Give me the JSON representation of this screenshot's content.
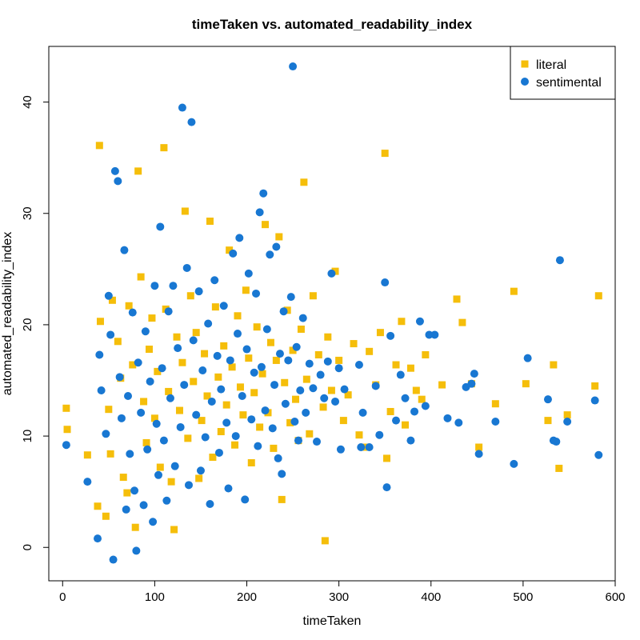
{
  "chart_data": {
    "type": "scatter",
    "title": "timeTaken vs. automated_readability_index",
    "xlabel": "timeTaken",
    "ylabel": "automated_readability_index",
    "xlim": [
      -15,
      600
    ],
    "ylim": [
      -3,
      45
    ],
    "xticks": [
      0,
      100,
      200,
      300,
      400,
      500,
      600
    ],
    "yticks": [
      0,
      10,
      20,
      30,
      40
    ],
    "grid": false,
    "legend_position": "top-right",
    "series": [
      {
        "name": "literal",
        "color": "#F5BE0A",
        "marker": "square",
        "points": [
          [
            4,
            12.5
          ],
          [
            5,
            10.6
          ],
          [
            27,
            8.3
          ],
          [
            38,
            3.7
          ],
          [
            40,
            36.1
          ],
          [
            41,
            20.3
          ],
          [
            47,
            2.8
          ],
          [
            50,
            12.4
          ],
          [
            52,
            8.4
          ],
          [
            54,
            22.2
          ],
          [
            60,
            18.5
          ],
          [
            63,
            15.2
          ],
          [
            66,
            6.3
          ],
          [
            70,
            4.9
          ],
          [
            72,
            21.7
          ],
          [
            76,
            16.4
          ],
          [
            79,
            1.8
          ],
          [
            82,
            33.8
          ],
          [
            85,
            24.3
          ],
          [
            88,
            13.1
          ],
          [
            91,
            9.4
          ],
          [
            94,
            17.8
          ],
          [
            97,
            20.6
          ],
          [
            100,
            11.6
          ],
          [
            103,
            15.8
          ],
          [
            106,
            7.2
          ],
          [
            110,
            35.9
          ],
          [
            112,
            21.4
          ],
          [
            115,
            14.0
          ],
          [
            118,
            5.9
          ],
          [
            121,
            1.6
          ],
          [
            124,
            18.9
          ],
          [
            127,
            12.3
          ],
          [
            130,
            16.6
          ],
          [
            133,
            30.2
          ],
          [
            136,
            9.8
          ],
          [
            139,
            22.6
          ],
          [
            142,
            14.9
          ],
          [
            145,
            19.3
          ],
          [
            148,
            6.2
          ],
          [
            151,
            11.4
          ],
          [
            154,
            17.4
          ],
          [
            157,
            13.6
          ],
          [
            160,
            29.3
          ],
          [
            163,
            8.1
          ],
          [
            166,
            21.6
          ],
          [
            169,
            15.3
          ],
          [
            172,
            10.4
          ],
          [
            175,
            18.1
          ],
          [
            178,
            12.8
          ],
          [
            181,
            26.7
          ],
          [
            184,
            16.2
          ],
          [
            187,
            9.2
          ],
          [
            190,
            20.8
          ],
          [
            193,
            14.4
          ],
          [
            196,
            11.9
          ],
          [
            199,
            23.1
          ],
          [
            202,
            17.0
          ],
          [
            205,
            7.6
          ],
          [
            208,
            13.9
          ],
          [
            211,
            19.8
          ],
          [
            214,
            10.8
          ],
          [
            217,
            15.6
          ],
          [
            220,
            29.0
          ],
          [
            223,
            12.1
          ],
          [
            226,
            18.4
          ],
          [
            229,
            8.9
          ],
          [
            232,
            16.8
          ],
          [
            235,
            27.9
          ],
          [
            238,
            4.3
          ],
          [
            241,
            14.8
          ],
          [
            244,
            21.3
          ],
          [
            247,
            11.2
          ],
          [
            250,
            17.7
          ],
          [
            253,
            13.3
          ],
          [
            256,
            9.6
          ],
          [
            259,
            19.6
          ],
          [
            262,
            32.8
          ],
          [
            265,
            15.1
          ],
          [
            268,
            10.2
          ],
          [
            272,
            22.6
          ],
          [
            278,
            17.3
          ],
          [
            283,
            12.6
          ],
          [
            285,
            0.6
          ],
          [
            288,
            18.9
          ],
          [
            292,
            14.1
          ],
          [
            296,
            24.8
          ],
          [
            300,
            16.8
          ],
          [
            305,
            11.4
          ],
          [
            310,
            13.7
          ],
          [
            316,
            18.3
          ],
          [
            322,
            10.1
          ],
          [
            328,
            9.0
          ],
          [
            333,
            17.6
          ],
          [
            340,
            14.6
          ],
          [
            345,
            19.3
          ],
          [
            350,
            35.4
          ],
          [
            352,
            8.0
          ],
          [
            356,
            12.2
          ],
          [
            362,
            16.4
          ],
          [
            368,
            20.3
          ],
          [
            372,
            11.0
          ],
          [
            378,
            16.1
          ],
          [
            384,
            14.1
          ],
          [
            390,
            13.3
          ],
          [
            394,
            17.3
          ],
          [
            412,
            14.6
          ],
          [
            428,
            22.3
          ],
          [
            434,
            20.2
          ],
          [
            444,
            14.7
          ],
          [
            452,
            9.0
          ],
          [
            470,
            12.9
          ],
          [
            490,
            23.0
          ],
          [
            503,
            14.7
          ],
          [
            527,
            11.4
          ],
          [
            533,
            16.4
          ],
          [
            539,
            7.1
          ],
          [
            548,
            11.9
          ],
          [
            578,
            14.5
          ],
          [
            582,
            22.6
          ]
        ]
      },
      {
        "name": "sentimental",
        "color": "#1877D2",
        "marker": "circle",
        "points": [
          [
            4,
            9.2
          ],
          [
            27,
            5.9
          ],
          [
            38,
            0.8
          ],
          [
            40,
            17.3
          ],
          [
            42,
            14.1
          ],
          [
            47,
            10.2
          ],
          [
            50,
            22.6
          ],
          [
            52,
            19.1
          ],
          [
            55,
            -1.1
          ],
          [
            57,
            33.8
          ],
          [
            60,
            32.9
          ],
          [
            62,
            15.3
          ],
          [
            64,
            11.6
          ],
          [
            67,
            26.7
          ],
          [
            69,
            3.4
          ],
          [
            71,
            13.6
          ],
          [
            73,
            8.4
          ],
          [
            76,
            21.1
          ],
          [
            78,
            5.1
          ],
          [
            80,
            -0.3
          ],
          [
            82,
            16.6
          ],
          [
            85,
            12.1
          ],
          [
            88,
            3.8
          ],
          [
            90,
            19.4
          ],
          [
            92,
            8.8
          ],
          [
            95,
            14.9
          ],
          [
            98,
            2.3
          ],
          [
            100,
            23.5
          ],
          [
            102,
            11.1
          ],
          [
            104,
            6.5
          ],
          [
            106,
            28.8
          ],
          [
            108,
            16.1
          ],
          [
            110,
            9.6
          ],
          [
            113,
            4.2
          ],
          [
            115,
            21.2
          ],
          [
            117,
            13.4
          ],
          [
            120,
            23.5
          ],
          [
            122,
            7.3
          ],
          [
            125,
            17.9
          ],
          [
            128,
            10.8
          ],
          [
            130,
            39.5
          ],
          [
            132,
            14.6
          ],
          [
            135,
            25.1
          ],
          [
            137,
            5.6
          ],
          [
            140,
            38.2
          ],
          [
            142,
            18.6
          ],
          [
            145,
            11.9
          ],
          [
            148,
            23.0
          ],
          [
            150,
            6.9
          ],
          [
            152,
            15.9
          ],
          [
            155,
            9.9
          ],
          [
            158,
            20.1
          ],
          [
            160,
            3.9
          ],
          [
            162,
            13.1
          ],
          [
            165,
            24.0
          ],
          [
            168,
            17.2
          ],
          [
            170,
            8.5
          ],
          [
            172,
            14.2
          ],
          [
            175,
            21.7
          ],
          [
            178,
            11.2
          ],
          [
            180,
            5.3
          ],
          [
            182,
            16.8
          ],
          [
            185,
            26.4
          ],
          [
            188,
            10.0
          ],
          [
            190,
            19.2
          ],
          [
            192,
            27.8
          ],
          [
            195,
            13.6
          ],
          [
            198,
            4.3
          ],
          [
            200,
            17.8
          ],
          [
            202,
            24.6
          ],
          [
            205,
            11.5
          ],
          [
            208,
            15.7
          ],
          [
            210,
            22.8
          ],
          [
            212,
            9.1
          ],
          [
            214,
            30.1
          ],
          [
            216,
            16.2
          ],
          [
            218,
            31.8
          ],
          [
            220,
            12.3
          ],
          [
            222,
            19.6
          ],
          [
            225,
            26.3
          ],
          [
            228,
            10.7
          ],
          [
            230,
            14.6
          ],
          [
            232,
            27.0
          ],
          [
            234,
            8.0
          ],
          [
            236,
            17.4
          ],
          [
            238,
            6.6
          ],
          [
            240,
            21.2
          ],
          [
            242,
            12.9
          ],
          [
            245,
            16.8
          ],
          [
            248,
            22.5
          ],
          [
            250,
            43.2
          ],
          [
            252,
            11.3
          ],
          [
            254,
            18.0
          ],
          [
            256,
            9.6
          ],
          [
            258,
            14.1
          ],
          [
            261,
            20.6
          ],
          [
            264,
            12.1
          ],
          [
            268,
            16.5
          ],
          [
            272,
            14.3
          ],
          [
            276,
            9.5
          ],
          [
            280,
            15.5
          ],
          [
            284,
            13.4
          ],
          [
            288,
            16.7
          ],
          [
            292,
            24.6
          ],
          [
            296,
            13.1
          ],
          [
            300,
            16.1
          ],
          [
            302,
            8.8
          ],
          [
            306,
            14.2
          ],
          [
            322,
            16.4
          ],
          [
            324,
            9.0
          ],
          [
            326,
            12.1
          ],
          [
            333,
            9.0
          ],
          [
            340,
            14.5
          ],
          [
            344,
            10.1
          ],
          [
            350,
            23.8
          ],
          [
            352,
            5.4
          ],
          [
            356,
            19.0
          ],
          [
            362,
            11.4
          ],
          [
            367,
            15.5
          ],
          [
            372,
            13.4
          ],
          [
            378,
            9.6
          ],
          [
            382,
            12.2
          ],
          [
            388,
            20.3
          ],
          [
            394,
            12.7
          ],
          [
            398,
            19.1
          ],
          [
            404,
            19.1
          ],
          [
            418,
            11.6
          ],
          [
            430,
            11.2
          ],
          [
            438,
            14.4
          ],
          [
            444,
            14.7
          ],
          [
            447,
            15.6
          ],
          [
            452,
            8.4
          ],
          [
            470,
            11.3
          ],
          [
            490,
            7.5
          ],
          [
            505,
            17.0
          ],
          [
            527,
            13.3
          ],
          [
            533,
            9.6
          ],
          [
            536,
            9.5
          ],
          [
            540,
            25.8
          ],
          [
            548,
            11.3
          ],
          [
            578,
            13.2
          ],
          [
            582,
            8.3
          ]
        ]
      }
    ]
  }
}
